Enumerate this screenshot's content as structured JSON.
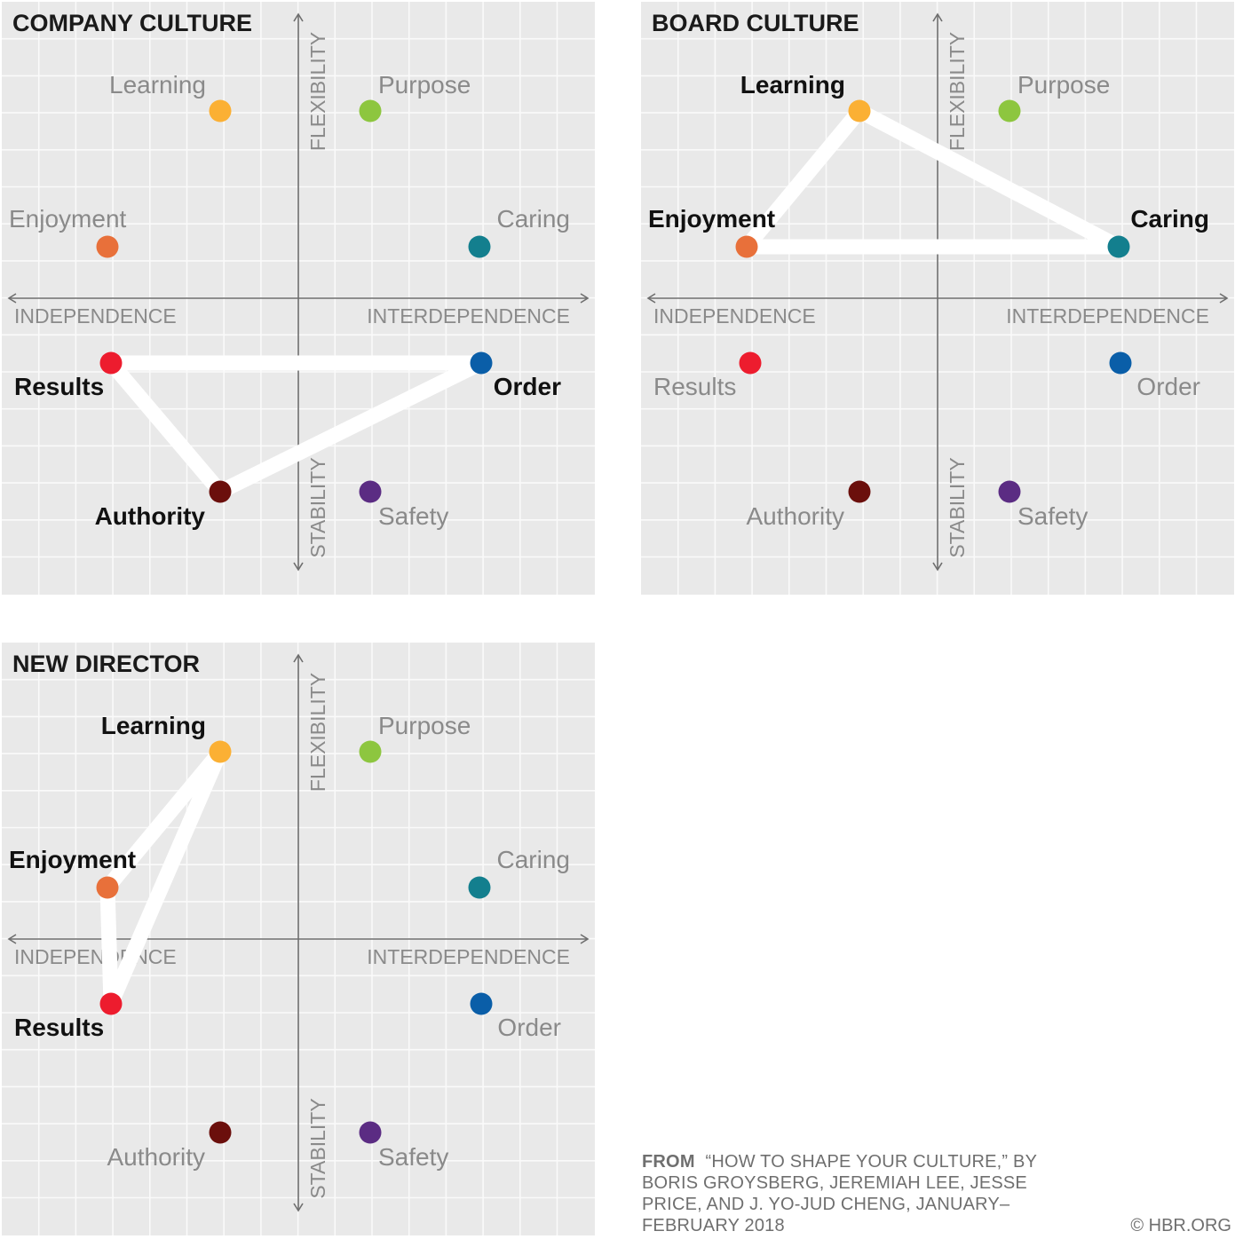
{
  "colors": {
    "panel_bg": "#e9e9e9",
    "grid": "#fafafa",
    "axis": "#6e6e6e",
    "label_muted": "#8a8a8a",
    "label_bold": "#111111",
    "connector": "#ffffff"
  },
  "axes": {
    "left": "INDEPENDENCE",
    "right": "INTERDEPENDENCE",
    "top": "FLEXIBILITY",
    "bottom": "STABILITY"
  },
  "styles": [
    {
      "key": "learning",
      "label": "Learning",
      "color": "#fbb034"
    },
    {
      "key": "purpose",
      "label": "Purpose",
      "color": "#8dc63f"
    },
    {
      "key": "enjoyment",
      "label": "Enjoyment",
      "color": "#e8703a"
    },
    {
      "key": "caring",
      "label": "Caring",
      "color": "#137f8e"
    },
    {
      "key": "results",
      "label": "Results",
      "color": "#ed1c2e"
    },
    {
      "key": "order",
      "label": "Order",
      "color": "#0a5ea8"
    },
    {
      "key": "authority",
      "label": "Authority",
      "color": "#6b0f0c"
    },
    {
      "key": "safety",
      "label": "Safety",
      "color": "#5b2c83"
    }
  ],
  "panels": [
    {
      "title": "COMPANY CULTURE",
      "highlighted": [
        "results",
        "order",
        "authority"
      ]
    },
    {
      "title": "BOARD CULTURE",
      "highlighted": [
        "learning",
        "caring",
        "enjoyment"
      ]
    },
    {
      "title": "NEW DIRECTOR",
      "highlighted": [
        "learning",
        "enjoyment",
        "results"
      ]
    }
  ],
  "source": {
    "from_label": "FROM",
    "text": "“HOW TO SHAPE YOUR CULTURE,” BY BORIS GROYSBERG, JEREMIAH LEE, JESSE PRICE, AND J. YO-JUD CHENG, JANUARY–FEBRUARY 2018"
  },
  "copyright": "© HBR.ORG"
}
